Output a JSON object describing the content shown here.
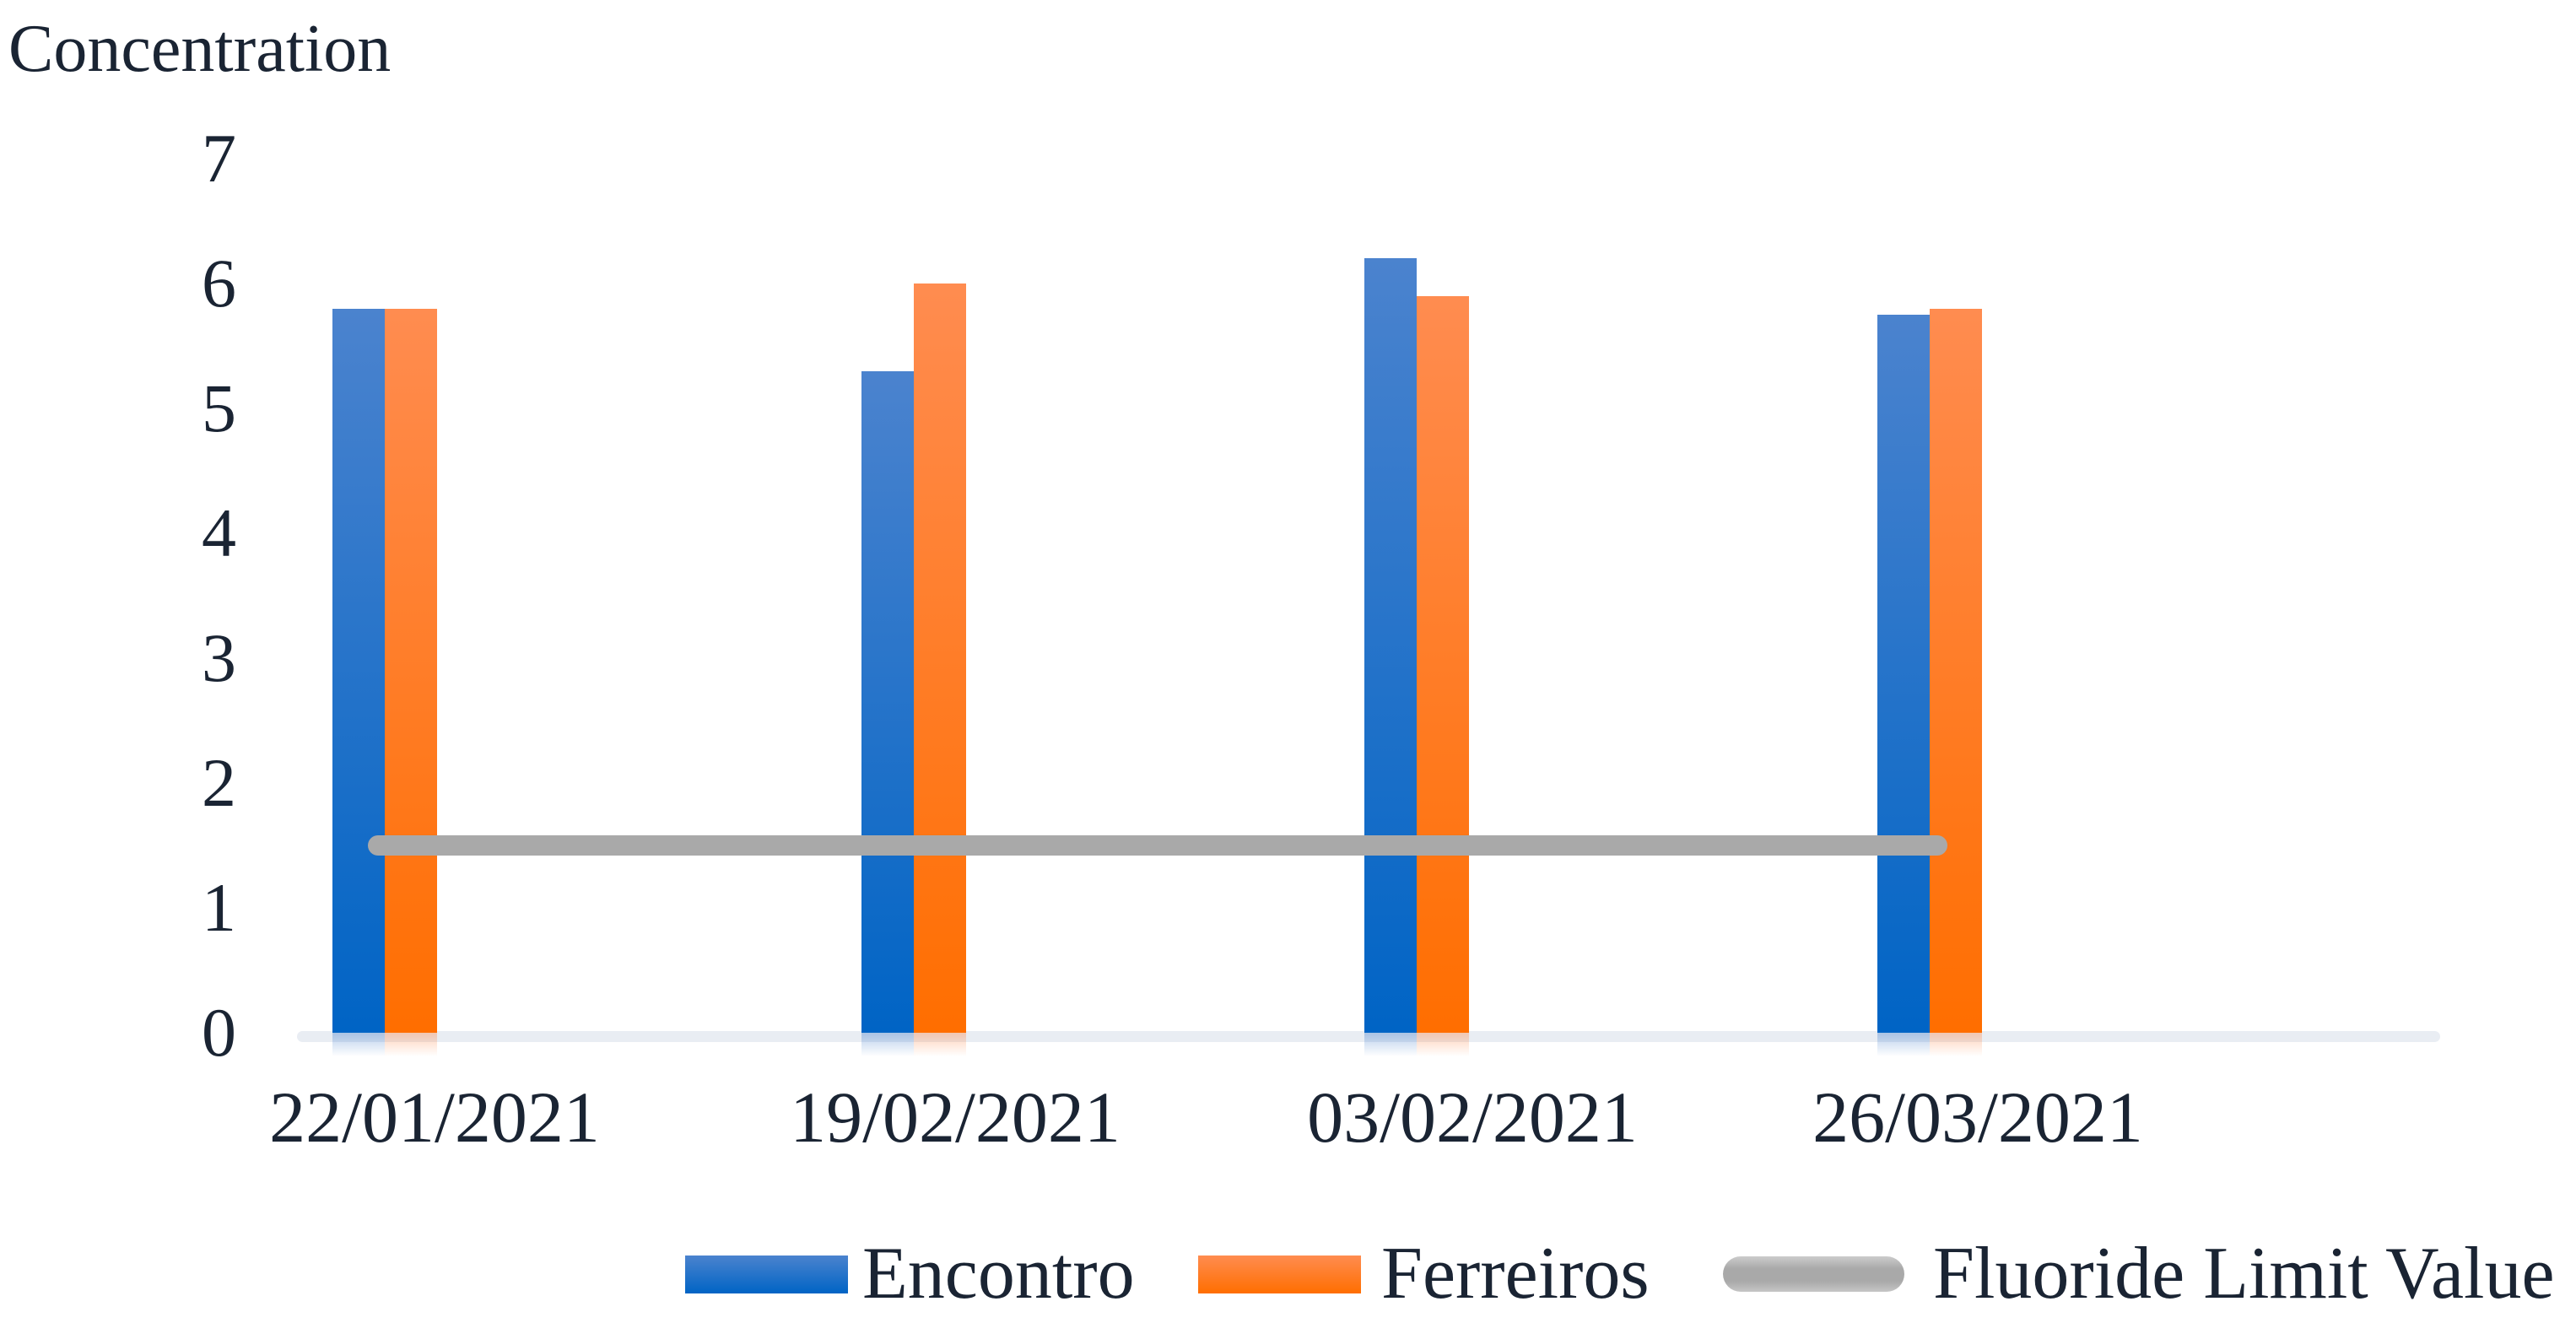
{
  "chart_data": {
    "type": "bar",
    "title": "Concentration",
    "categories": [
      "22/01/2021",
      "19/02/2021",
      "03/02/2021",
      "26/03/2021"
    ],
    "series": [
      {
        "name": "Encontro",
        "color_top": "#4B83CE",
        "color_bottom": "#0064C5",
        "values": [
          5.8,
          5.3,
          6.2,
          5.75
        ]
      },
      {
        "name": "Ferreiros",
        "color_top": "#FF8C50",
        "color_bottom": "#FF6E00",
        "values": [
          5.8,
          6.0,
          5.9,
          5.8
        ]
      }
    ],
    "limit_line": {
      "name": "Fluoride Limit Value",
      "value": 1.5,
      "color": "#A9A9A9"
    },
    "y_axis": {
      "min": 0,
      "max": 7,
      "tick_step": 1,
      "tick_labels": [
        "0",
        "1",
        "2",
        "3",
        "4",
        "5",
        "6",
        "7"
      ]
    },
    "xlabel": "",
    "ylabel": "Concentration",
    "grid": false,
    "legend_position": "bottom",
    "background_color": "#FFFFFF",
    "axis_band_color": "#E9EDF3"
  }
}
